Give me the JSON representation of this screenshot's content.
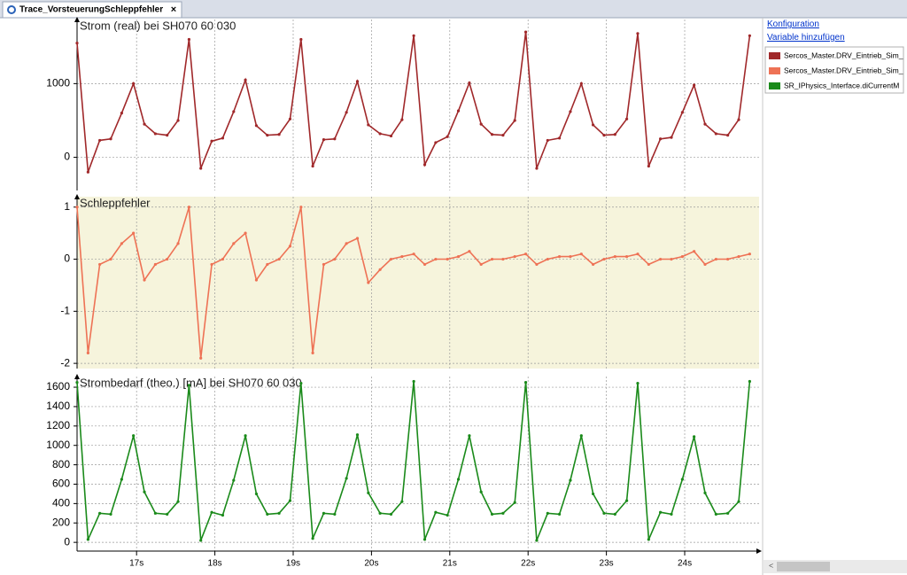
{
  "ui": {
    "tab": "Trace_VorsteuerungSchleppfehler",
    "links": [
      "Konfiguration",
      "Variable hinzufügen"
    ]
  },
  "chart_data": {
    "type": "line",
    "xlim": [
      16.24,
      24.95
    ],
    "xticks": [
      {
        "value": 17,
        "label": "17s"
      },
      {
        "value": 18,
        "label": "18s"
      },
      {
        "value": 19,
        "label": "19s"
      },
      {
        "value": 20,
        "label": "20s"
      },
      {
        "value": 21,
        "label": "21s"
      },
      {
        "value": 22,
        "label": "22s"
      },
      {
        "value": 23,
        "label": "23s"
      },
      {
        "value": 24,
        "label": "24s"
      }
    ],
    "grid": true,
    "x": [
      16.24,
      16.38,
      16.53,
      16.67,
      16.81,
      16.96,
      17.1,
      17.24,
      17.39,
      17.53,
      17.67,
      17.82,
      17.96,
      18.1,
      18.24,
      18.39,
      18.53,
      18.67,
      18.82,
      18.96,
      19.1,
      19.25,
      19.39,
      19.53,
      19.68,
      19.82,
      19.96,
      20.11,
      20.25,
      20.39,
      20.54,
      20.68,
      20.82,
      20.97,
      21.11,
      21.25,
      21.4,
      21.54,
      21.68,
      21.83,
      21.97,
      22.11,
      22.25,
      22.4,
      22.54,
      22.68,
      22.83,
      22.97,
      23.11,
      23.26,
      23.4,
      23.54,
      23.69,
      23.83,
      23.97,
      24.12,
      24.26,
      24.4,
      24.55,
      24.69,
      24.83
    ],
    "series": [
      {
        "name": "Sercos_Master.DRV_Eintrieb_Sim_",
        "title": "Strom (real) bei SH070 60 030",
        "color": "#a0282a",
        "background": "#ffffff",
        "ylim": [
          -450,
          1870
        ],
        "yticks": [
          0,
          1000
        ],
        "values": [
          1550,
          -200,
          230,
          250,
          600,
          1000,
          450,
          320,
          300,
          500,
          1600,
          -150,
          220,
          260,
          620,
          1050,
          430,
          300,
          310,
          520,
          1600,
          -120,
          240,
          250,
          610,
          1030,
          440,
          320,
          290,
          510,
          1650,
          -100,
          200,
          280,
          630,
          1010,
          450,
          310,
          300,
          500,
          1700,
          -150,
          230,
          260,
          620,
          1000,
          440,
          300,
          310,
          520,
          1680,
          -120,
          250,
          270,
          610,
          980,
          450,
          320,
          300,
          510,
          1650
        ]
      },
      {
        "name": "Sercos_Master.DRV_Eintrieb_Sim_",
        "title": "Schleppfehler",
        "color": "#ee7255",
        "background": "#f6f4dc",
        "ylim": [
          -2.1,
          1.2
        ],
        "yticks": [
          1,
          0,
          -1,
          -2
        ],
        "values": [
          1.0,
          -1.8,
          -0.1,
          0.0,
          0.3,
          0.5,
          -0.4,
          -0.1,
          0.0,
          0.3,
          1.0,
          -1.9,
          -0.1,
          0.0,
          0.3,
          0.5,
          -0.4,
          -0.1,
          0.0,
          0.25,
          1.0,
          -1.8,
          -0.1,
          0.0,
          0.3,
          0.4,
          -0.45,
          -0.2,
          0.0,
          0.05,
          0.1,
          -0.1,
          0.0,
          0.0,
          0.05,
          0.15,
          -0.1,
          0.0,
          0.0,
          0.05,
          0.1,
          -0.1,
          0.0,
          0.05,
          0.05,
          0.1,
          -0.1,
          0.0,
          0.05,
          0.05,
          0.1,
          -0.1,
          0.0,
          0.0,
          0.05,
          0.15,
          -0.1,
          0.0,
          0.0,
          0.05,
          0.1
        ]
      },
      {
        "name": "SR_IPhysics_Interface.diCurrentM",
        "title": "Strombedarf (theo.) [mA] bei SH070 60 030",
        "color": "#1a8a1a",
        "background": "#ffffff",
        "ylim": [
          -90,
          1710
        ],
        "yticks": [
          0,
          200,
          400,
          600,
          800,
          1000,
          1200,
          1400,
          1600
        ],
        "values": [
          1650,
          30,
          300,
          290,
          650,
          1100,
          520,
          300,
          290,
          420,
          1620,
          20,
          310,
          280,
          640,
          1100,
          500,
          290,
          300,
          430,
          1640,
          40,
          300,
          290,
          660,
          1110,
          510,
          300,
          290,
          420,
          1660,
          30,
          310,
          280,
          650,
          1100,
          520,
          290,
          300,
          410,
          1650,
          20,
          300,
          290,
          640,
          1100,
          500,
          300,
          290,
          430,
          1640,
          30,
          310,
          290,
          650,
          1090,
          510,
          290,
          300,
          420,
          1660
        ]
      }
    ]
  }
}
